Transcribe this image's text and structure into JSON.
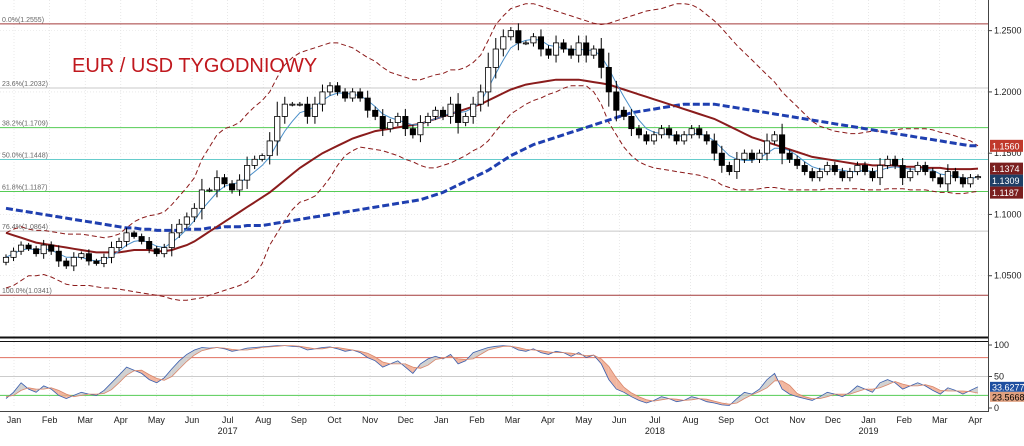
{
  "chart_data": {
    "type": "candlestick",
    "title": "EUR / USD TYGODNIOWY",
    "price_axis": {
      "ylim": [
        1.0,
        1.275
      ],
      "ticks": [
        "1.2500",
        "1.2000",
        "1.1500",
        "1.1000",
        "1.0500"
      ],
      "tick_values": [
        1.25,
        1.2,
        1.15,
        1.1,
        1.05
      ]
    },
    "osc_axis": {
      "ylim": [
        0,
        100
      ],
      "ticks": [
        "100",
        "50",
        "0"
      ],
      "tick_values": [
        100,
        50,
        0
      ]
    },
    "fib_levels": [
      {
        "label": "0.0%(1.2555)",
        "value": 1.2555,
        "color": "#a33a3a"
      },
      {
        "label": "23.6%(1.2032)",
        "value": 1.2032,
        "color": "#c8c8c8"
      },
      {
        "label": "38.2%(1.1709)",
        "value": 1.1709,
        "color": "#55cc55"
      },
      {
        "label": "50.0%(1.1448)",
        "value": 1.1448,
        "color": "#66cccc"
      },
      {
        "label": "61.8%(1.1187)",
        "value": 1.1187,
        "color": "#55cc55"
      },
      {
        "label": "76.4%(1.0864)",
        "value": 1.0864,
        "color": "#c8c8c8"
      },
      {
        "label": "100.0%(1.0341)",
        "value": 1.0341,
        "color": "#a33a3a"
      }
    ],
    "price_tags": [
      {
        "label": "1.1560",
        "value": 1.156,
        "bg": "#c0392b",
        "fg": "#ffffff"
      },
      {
        "label": "1.1374",
        "value": 1.1374,
        "bg": "#7a1f1f",
        "fg": "#ffffff"
      },
      {
        "label": "1.1309",
        "value": 1.1309,
        "bg": "#1e3f66",
        "fg": "#ffffff"
      },
      {
        "label": "1.1187",
        "value": 1.1187,
        "bg": "#7a1f1f",
        "fg": "#ffffff"
      }
    ],
    "osc_tags": [
      {
        "label": "33.6277",
        "value": 33.6,
        "bg": "#1e4fa0",
        "fg": "#ffffff"
      },
      {
        "label": "23.5668",
        "value": 23.6,
        "bg": "#e0a080",
        "fg": "#000000"
      }
    ],
    "osc_levels": [
      80,
      50,
      20
    ],
    "x_months": [
      "Jan",
      "Feb",
      "Mar",
      "Apr",
      "May",
      "Jun",
      "Jul",
      "Aug",
      "Sep",
      "Oct",
      "Nov",
      "Dec",
      "Jan",
      "Feb",
      "Mar",
      "Apr",
      "May",
      "Jun",
      "Jul",
      "Aug",
      "Sep",
      "Oct",
      "Nov",
      "Dec",
      "Jan",
      "Feb",
      "Mar",
      "Apr"
    ],
    "x_years": [
      {
        "label": "2017",
        "month_index": 6
      },
      {
        "label": "2018",
        "month_index": 18
      },
      {
        "label": "2019",
        "month_index": 24
      }
    ],
    "weekly_close": [
      1.065,
      1.07,
      1.075,
      1.072,
      1.068,
      1.075,
      1.07,
      1.062,
      1.058,
      1.065,
      1.068,
      1.062,
      1.06,
      1.065,
      1.073,
      1.078,
      1.085,
      1.082,
      1.078,
      1.072,
      1.068,
      1.073,
      1.085,
      1.092,
      1.098,
      1.105,
      1.12,
      1.12,
      1.13,
      1.125,
      1.12,
      1.128,
      1.14,
      1.145,
      1.148,
      1.16,
      1.18,
      1.19,
      1.19,
      1.19,
      1.18,
      1.19,
      1.2,
      1.205,
      1.2,
      1.195,
      1.2,
      1.195,
      1.185,
      1.18,
      1.17,
      1.175,
      1.18,
      1.17,
      1.165,
      1.175,
      1.18,
      1.185,
      1.18,
      1.19,
      1.175,
      1.18,
      1.19,
      1.2,
      1.22,
      1.235,
      1.245,
      1.25,
      1.24,
      1.24,
      1.245,
      1.235,
      1.23,
      1.24,
      1.235,
      1.23,
      1.24,
      1.23,
      1.235,
      1.22,
      1.2,
      1.185,
      1.18,
      1.17,
      1.165,
      1.16,
      1.165,
      1.17,
      1.165,
      1.16,
      1.165,
      1.17,
      1.165,
      1.16,
      1.15,
      1.14,
      1.135,
      1.145,
      1.15,
      1.145,
      1.15,
      1.16,
      1.165,
      1.15,
      1.145,
      1.14,
      1.135,
      1.13,
      1.135,
      1.14,
      1.135,
      1.13,
      1.135,
      1.14,
      1.135,
      1.13,
      1.14,
      1.145,
      1.14,
      1.13,
      1.135,
      1.14,
      1.135,
      1.13,
      1.125,
      1.135,
      1.13,
      1.125,
      1.13,
      1.1309
    ],
    "bb_upper": [
      1.085,
      1.088,
      1.09,
      1.088,
      1.087,
      1.087,
      1.086,
      1.085,
      1.084,
      1.084,
      1.084,
      1.083,
      1.082,
      1.081,
      1.082,
      1.084,
      1.089,
      1.094,
      1.097,
      1.099,
      1.1,
      1.102,
      1.108,
      1.115,
      1.122,
      1.13,
      1.145,
      1.155,
      1.165,
      1.17,
      1.172,
      1.175,
      1.182,
      1.188,
      1.193,
      1.2,
      1.212,
      1.222,
      1.228,
      1.232,
      1.234,
      1.236,
      1.238,
      1.24,
      1.24,
      1.238,
      1.236,
      1.232,
      1.228,
      1.225,
      1.22,
      1.216,
      1.214,
      1.212,
      1.21,
      1.21,
      1.212,
      1.214,
      1.215,
      1.218,
      1.218,
      1.22,
      1.224,
      1.23,
      1.242,
      1.255,
      1.262,
      1.268,
      1.27,
      1.272,
      1.272,
      1.27,
      1.268,
      1.266,
      1.264,
      1.262,
      1.26,
      1.258,
      1.256,
      1.255,
      1.256,
      1.258,
      1.26,
      1.262,
      1.264,
      1.266,
      1.267,
      1.268,
      1.27,
      1.272,
      1.272,
      1.271,
      1.268,
      1.263,
      1.258,
      1.252,
      1.245,
      1.238,
      1.232,
      1.226,
      1.22,
      1.214,
      1.208,
      1.2,
      1.194,
      1.188,
      1.182,
      1.176,
      1.172,
      1.17,
      1.168,
      1.167,
      1.166,
      1.166,
      1.167,
      1.168,
      1.168,
      1.168,
      1.169,
      1.17,
      1.17,
      1.17,
      1.17,
      1.169,
      1.167,
      1.166,
      1.164,
      1.162,
      1.16,
      1.156
    ],
    "bb_lower": [
      1.04,
      1.042,
      1.046,
      1.05,
      1.05,
      1.051,
      1.049,
      1.046,
      1.043,
      1.042,
      1.042,
      1.042,
      1.041,
      1.04,
      1.04,
      1.039,
      1.038,
      1.037,
      1.036,
      1.035,
      1.034,
      1.033,
      1.031,
      1.03,
      1.03,
      1.031,
      1.032,
      1.034,
      1.036,
      1.038,
      1.04,
      1.042,
      1.045,
      1.05,
      1.06,
      1.075,
      1.085,
      1.095,
      1.104,
      1.11,
      1.112,
      1.115,
      1.122,
      1.13,
      1.14,
      1.148,
      1.152,
      1.155,
      1.154,
      1.153,
      1.152,
      1.15,
      1.148,
      1.145,
      1.143,
      1.14,
      1.138,
      1.138,
      1.14,
      1.142,
      1.145,
      1.148,
      1.152,
      1.155,
      1.16,
      1.168,
      1.175,
      1.182,
      1.186,
      1.19,
      1.193,
      1.195,
      1.198,
      1.2,
      1.203,
      1.205,
      1.205,
      1.205,
      1.2,
      1.19,
      1.175,
      1.165,
      1.155,
      1.148,
      1.143,
      1.14,
      1.138,
      1.137,
      1.136,
      1.135,
      1.134,
      1.133,
      1.132,
      1.13,
      1.128,
      1.124,
      1.122,
      1.12,
      1.12,
      1.12,
      1.121,
      1.122,
      1.122,
      1.121,
      1.12,
      1.12,
      1.12,
      1.12,
      1.12,
      1.121,
      1.121,
      1.121,
      1.121,
      1.121,
      1.12,
      1.12,
      1.12,
      1.121,
      1.121,
      1.121,
      1.12,
      1.12,
      1.12,
      1.119,
      1.118,
      1.118,
      1.117,
      1.117,
      1.118,
      1.119
    ],
    "ma_long": [
      1.105,
      1.104,
      1.103,
      1.102,
      1.101,
      1.1,
      1.099,
      1.098,
      1.097,
      1.096,
      1.095,
      1.094,
      1.093,
      1.092,
      1.091,
      1.09,
      1.089,
      1.089,
      1.088,
      1.088,
      1.087,
      1.087,
      1.087,
      1.087,
      1.088,
      1.088,
      1.088,
      1.089,
      1.089,
      1.09,
      1.09,
      1.09,
      1.091,
      1.091,
      1.091,
      1.092,
      1.093,
      1.094,
      1.095,
      1.096,
      1.097,
      1.098,
      1.099,
      1.1,
      1.101,
      1.102,
      1.103,
      1.104,
      1.105,
      1.106,
      1.107,
      1.108,
      1.109,
      1.11,
      1.111,
      1.112,
      1.114,
      1.116,
      1.118,
      1.121,
      1.124,
      1.127,
      1.13,
      1.133,
      1.136,
      1.14,
      1.144,
      1.148,
      1.151,
      1.154,
      1.157,
      1.159,
      1.161,
      1.163,
      1.165,
      1.167,
      1.169,
      1.171,
      1.173,
      1.175,
      1.177,
      1.179,
      1.181,
      1.183,
      1.184,
      1.185,
      1.186,
      1.187,
      1.188,
      1.189,
      1.19,
      1.19,
      1.19,
      1.19,
      1.19,
      1.189,
      1.188,
      1.187,
      1.186,
      1.185,
      1.184,
      1.183,
      1.182,
      1.181,
      1.18,
      1.179,
      1.178,
      1.177,
      1.176,
      1.175,
      1.174,
      1.173,
      1.172,
      1.171,
      1.17,
      1.169,
      1.168,
      1.167,
      1.166,
      1.165,
      1.164,
      1.163,
      1.162,
      1.161,
      1.16,
      1.159,
      1.158,
      1.157,
      1.156,
      1.156
    ],
    "ma_mid": [
      1.085,
      1.083,
      1.081,
      1.079,
      1.077,
      1.076,
      1.075,
      1.074,
      1.073,
      1.072,
      1.071,
      1.07,
      1.069,
      1.069,
      1.069,
      1.069,
      1.07,
      1.071,
      1.071,
      1.071,
      1.07,
      1.07,
      1.071,
      1.073,
      1.075,
      1.078,
      1.082,
      1.086,
      1.09,
      1.094,
      1.098,
      1.102,
      1.106,
      1.11,
      1.114,
      1.118,
      1.123,
      1.128,
      1.133,
      1.138,
      1.142,
      1.146,
      1.15,
      1.153,
      1.156,
      1.159,
      1.162,
      1.164,
      1.166,
      1.168,
      1.169,
      1.17,
      1.171,
      1.172,
      1.173,
      1.174,
      1.176,
      1.178,
      1.18,
      1.182,
      1.184,
      1.186,
      1.188,
      1.19,
      1.193,
      1.196,
      1.199,
      1.202,
      1.204,
      1.206,
      1.207,
      1.208,
      1.209,
      1.21,
      1.21,
      1.21,
      1.21,
      1.209,
      1.208,
      1.207,
      1.206,
      1.204,
      1.202,
      1.2,
      1.198,
      1.196,
      1.194,
      1.192,
      1.19,
      1.188,
      1.186,
      1.184,
      1.182,
      1.18,
      1.178,
      1.175,
      1.172,
      1.169,
      1.166,
      1.163,
      1.161,
      1.159,
      1.157,
      1.155,
      1.153,
      1.151,
      1.149,
      1.147,
      1.146,
      1.145,
      1.144,
      1.143,
      1.142,
      1.141,
      1.141,
      1.14,
      1.14,
      1.14,
      1.14,
      1.139,
      1.139,
      1.139,
      1.138,
      1.138,
      1.138,
      1.137,
      1.137,
      1.137,
      1.137,
      1.1374
    ],
    "ma_short": [
      1.065,
      1.068,
      1.071,
      1.072,
      1.071,
      1.072,
      1.071,
      1.068,
      1.065,
      1.065,
      1.065,
      1.063,
      1.062,
      1.063,
      1.066,
      1.07,
      1.075,
      1.078,
      1.079,
      1.077,
      1.074,
      1.073,
      1.077,
      1.082,
      1.088,
      1.095,
      1.104,
      1.111,
      1.118,
      1.123,
      1.125,
      1.126,
      1.13,
      1.135,
      1.14,
      1.147,
      1.158,
      1.168,
      1.176,
      1.183,
      1.185,
      1.188,
      1.193,
      1.197,
      1.199,
      1.199,
      1.198,
      1.197,
      1.193,
      1.188,
      1.182,
      1.179,
      1.177,
      1.175,
      1.173,
      1.174,
      1.176,
      1.178,
      1.18,
      1.183,
      1.183,
      1.184,
      1.187,
      1.192,
      1.203,
      1.215,
      1.226,
      1.236,
      1.24,
      1.242,
      1.243,
      1.242,
      1.238,
      1.237,
      1.236,
      1.234,
      1.235,
      1.234,
      1.234,
      1.229,
      1.219,
      1.207,
      1.196,
      1.186,
      1.177,
      1.17,
      1.167,
      1.166,
      1.165,
      1.164,
      1.164,
      1.166,
      1.166,
      1.164,
      1.16,
      1.154,
      1.148,
      1.145,
      1.144,
      1.144,
      1.146,
      1.15,
      1.154,
      1.154,
      1.152,
      1.148,
      1.143,
      1.139,
      1.137,
      1.137,
      1.137,
      1.136,
      1.135,
      1.135,
      1.136,
      1.135,
      1.136,
      1.138,
      1.139,
      1.138,
      1.137,
      1.137,
      1.137,
      1.136,
      1.133,
      1.132,
      1.131,
      1.13,
      1.129,
      1.1309
    ],
    "osc_k": [
      15,
      25,
      40,
      30,
      25,
      35,
      30,
      20,
      15,
      20,
      25,
      22,
      20,
      28,
      40,
      52,
      65,
      60,
      55,
      45,
      40,
      48,
      62,
      75,
      85,
      92,
      96,
      95,
      96,
      94,
      90,
      92,
      95,
      96,
      97,
      98,
      99,
      99,
      98,
      97,
      92,
      94,
      96,
      97,
      94,
      90,
      92,
      88,
      80,
      75,
      65,
      70,
      75,
      65,
      55,
      70,
      78,
      82,
      78,
      85,
      70,
      75,
      88,
      92,
      96,
      98,
      99,
      98,
      92,
      90,
      94,
      88,
      85,
      90,
      88,
      82,
      88,
      80,
      84,
      70,
      45,
      30,
      25,
      18,
      12,
      8,
      12,
      18,
      15,
      10,
      12,
      18,
      15,
      10,
      8,
      5,
      4,
      15,
      25,
      22,
      30,
      45,
      55,
      30,
      22,
      18,
      15,
      12,
      18,
      25,
      22,
      18,
      25,
      35,
      30,
      25,
      40,
      45,
      40,
      30,
      35,
      40,
      35,
      28,
      22,
      32,
      28,
      22,
      28,
      33.6
    ],
    "osc_d": [
      18,
      20,
      28,
      32,
      30,
      30,
      32,
      28,
      22,
      18,
      20,
      22,
      22,
      23,
      29,
      40,
      52,
      59,
      60,
      53,
      47,
      44,
      50,
      62,
      74,
      84,
      91,
      94,
      96,
      95,
      93,
      92,
      92,
      94,
      96,
      97,
      98,
      99,
      99,
      98,
      96,
      94,
      94,
      96,
      96,
      94,
      92,
      90,
      87,
      81,
      73,
      70,
      70,
      70,
      65,
      63,
      68,
      77,
      79,
      82,
      78,
      77,
      78,
      85,
      92,
      95,
      98,
      98,
      96,
      93,
      92,
      91,
      89,
      88,
      88,
      87,
      85,
      83,
      84,
      78,
      66,
      48,
      33,
      24,
      18,
      13,
      11,
      13,
      15,
      14,
      12,
      13,
      15,
      14,
      11,
      8,
      6,
      8,
      15,
      21,
      26,
      32,
      43,
      43,
      36,
      23,
      18,
      15,
      15,
      18,
      22,
      22,
      22,
      26,
      30,
      30,
      32,
      37,
      42,
      38,
      35,
      35,
      37,
      34,
      28,
      27,
      27,
      27,
      26,
      23.6
    ]
  }
}
